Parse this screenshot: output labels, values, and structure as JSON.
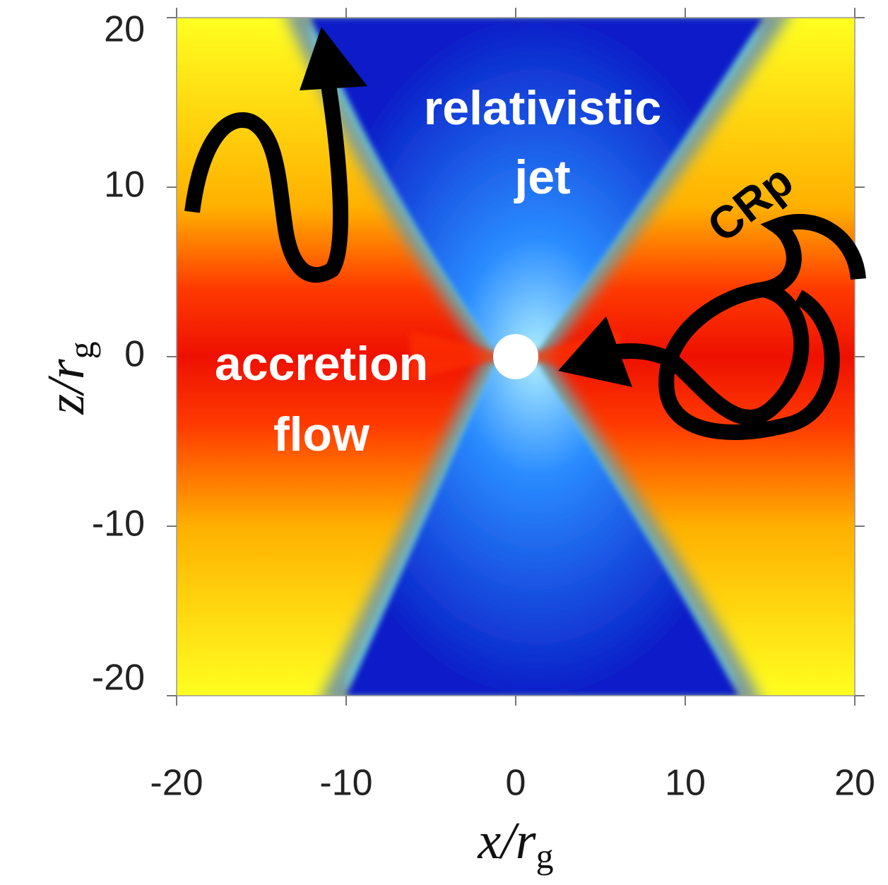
{
  "chart_data": {
    "type": "image",
    "xlabel": {
      "main": "x/r",
      "sub": "g"
    },
    "ylabel": {
      "main": "z/r",
      "sub": "g"
    },
    "xlim": [
      -20,
      20
    ],
    "ylim": [
      -20,
      20
    ],
    "xticks": [
      -20,
      -10,
      0,
      10,
      20
    ],
    "yticks": [
      -20,
      -10,
      0,
      10,
      20
    ],
    "annotations": [
      {
        "lines": [
          "relativistic",
          "jet"
        ]
      },
      {
        "lines": [
          "accretion",
          "flow"
        ]
      },
      {
        "lines": [
          "CRp"
        ]
      }
    ]
  }
}
